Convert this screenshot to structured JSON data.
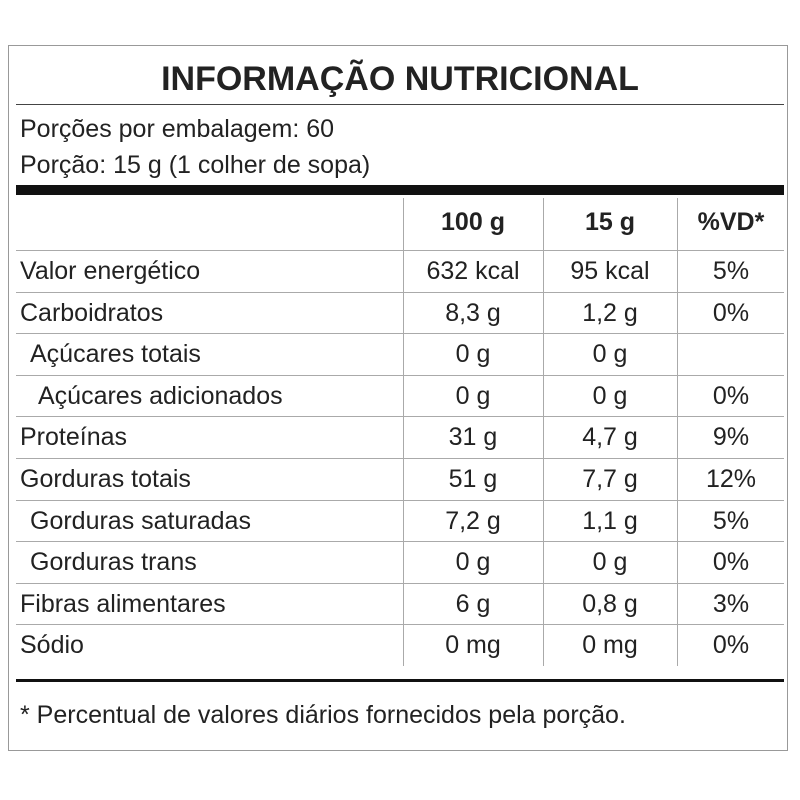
{
  "header": {
    "title": "INFORMAÇÃO NUTRICIONAL",
    "servings": "Porções por embalagem: 60",
    "serving_size": "Porção: 15 g (1 colher de sopa)"
  },
  "table": {
    "columns": [
      "100 g",
      "15 g",
      "%VD*"
    ],
    "rows": [
      [
        "Valor energético",
        "632 kcal",
        "95 kcal",
        "5%"
      ],
      [
        "Carboidratos",
        "8,3 g",
        "1,2 g",
        "0%"
      ],
      [
        "Açúcares totais",
        "0 g",
        "0 g",
        null
      ],
      [
        "Açúcares adicionados",
        "0 g",
        "0 g",
        "0%"
      ],
      [
        "Proteínas",
        "31 g",
        "4,7 g",
        "9%"
      ],
      [
        "Gorduras totais",
        "51 g",
        "7,7 g",
        "12%"
      ],
      [
        "Gorduras saturadas",
        "7,2 g",
        "1,1 g",
        "5%"
      ],
      [
        "Gorduras trans",
        "0 g",
        "0 g",
        "0%"
      ],
      [
        "Fibras alimentares",
        "6 g",
        "0,8 g",
        "3%"
      ],
      [
        "Sódio",
        "0 mg",
        "0 mg",
        "0%"
      ]
    ]
  },
  "footnote": "* Percentual de valores diários fornecidos pela porção."
}
